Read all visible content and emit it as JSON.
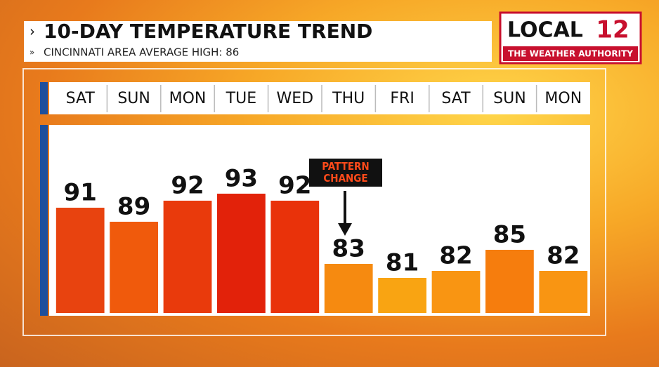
{
  "chart_data": {
    "type": "bar",
    "title": "10-DAY TEMPERATURE TREND",
    "subtitle": "CINCINNATI AREA AVERAGE HIGH: 86",
    "categories": [
      "SAT",
      "SUN",
      "MON",
      "TUE",
      "WED",
      "THU",
      "FRI",
      "SAT",
      "SUN",
      "MON"
    ],
    "values": [
      91,
      89,
      92,
      93,
      92,
      83,
      81,
      82,
      85,
      82
    ],
    "colors": [
      "#e8430f",
      "#f05a0c",
      "#e93a0c",
      "#e2220a",
      "#e9320a",
      "#f68a10",
      "#f9a412",
      "#f99512",
      "#f67d0d",
      "#f99512"
    ],
    "ylim": [
      76,
      102
    ],
    "annotation": "PATTERN CHANGE"
  },
  "logo": {
    "name": "LOCAL",
    "number": "12",
    "tagline": "THE WEATHER AUTHORITY"
  }
}
